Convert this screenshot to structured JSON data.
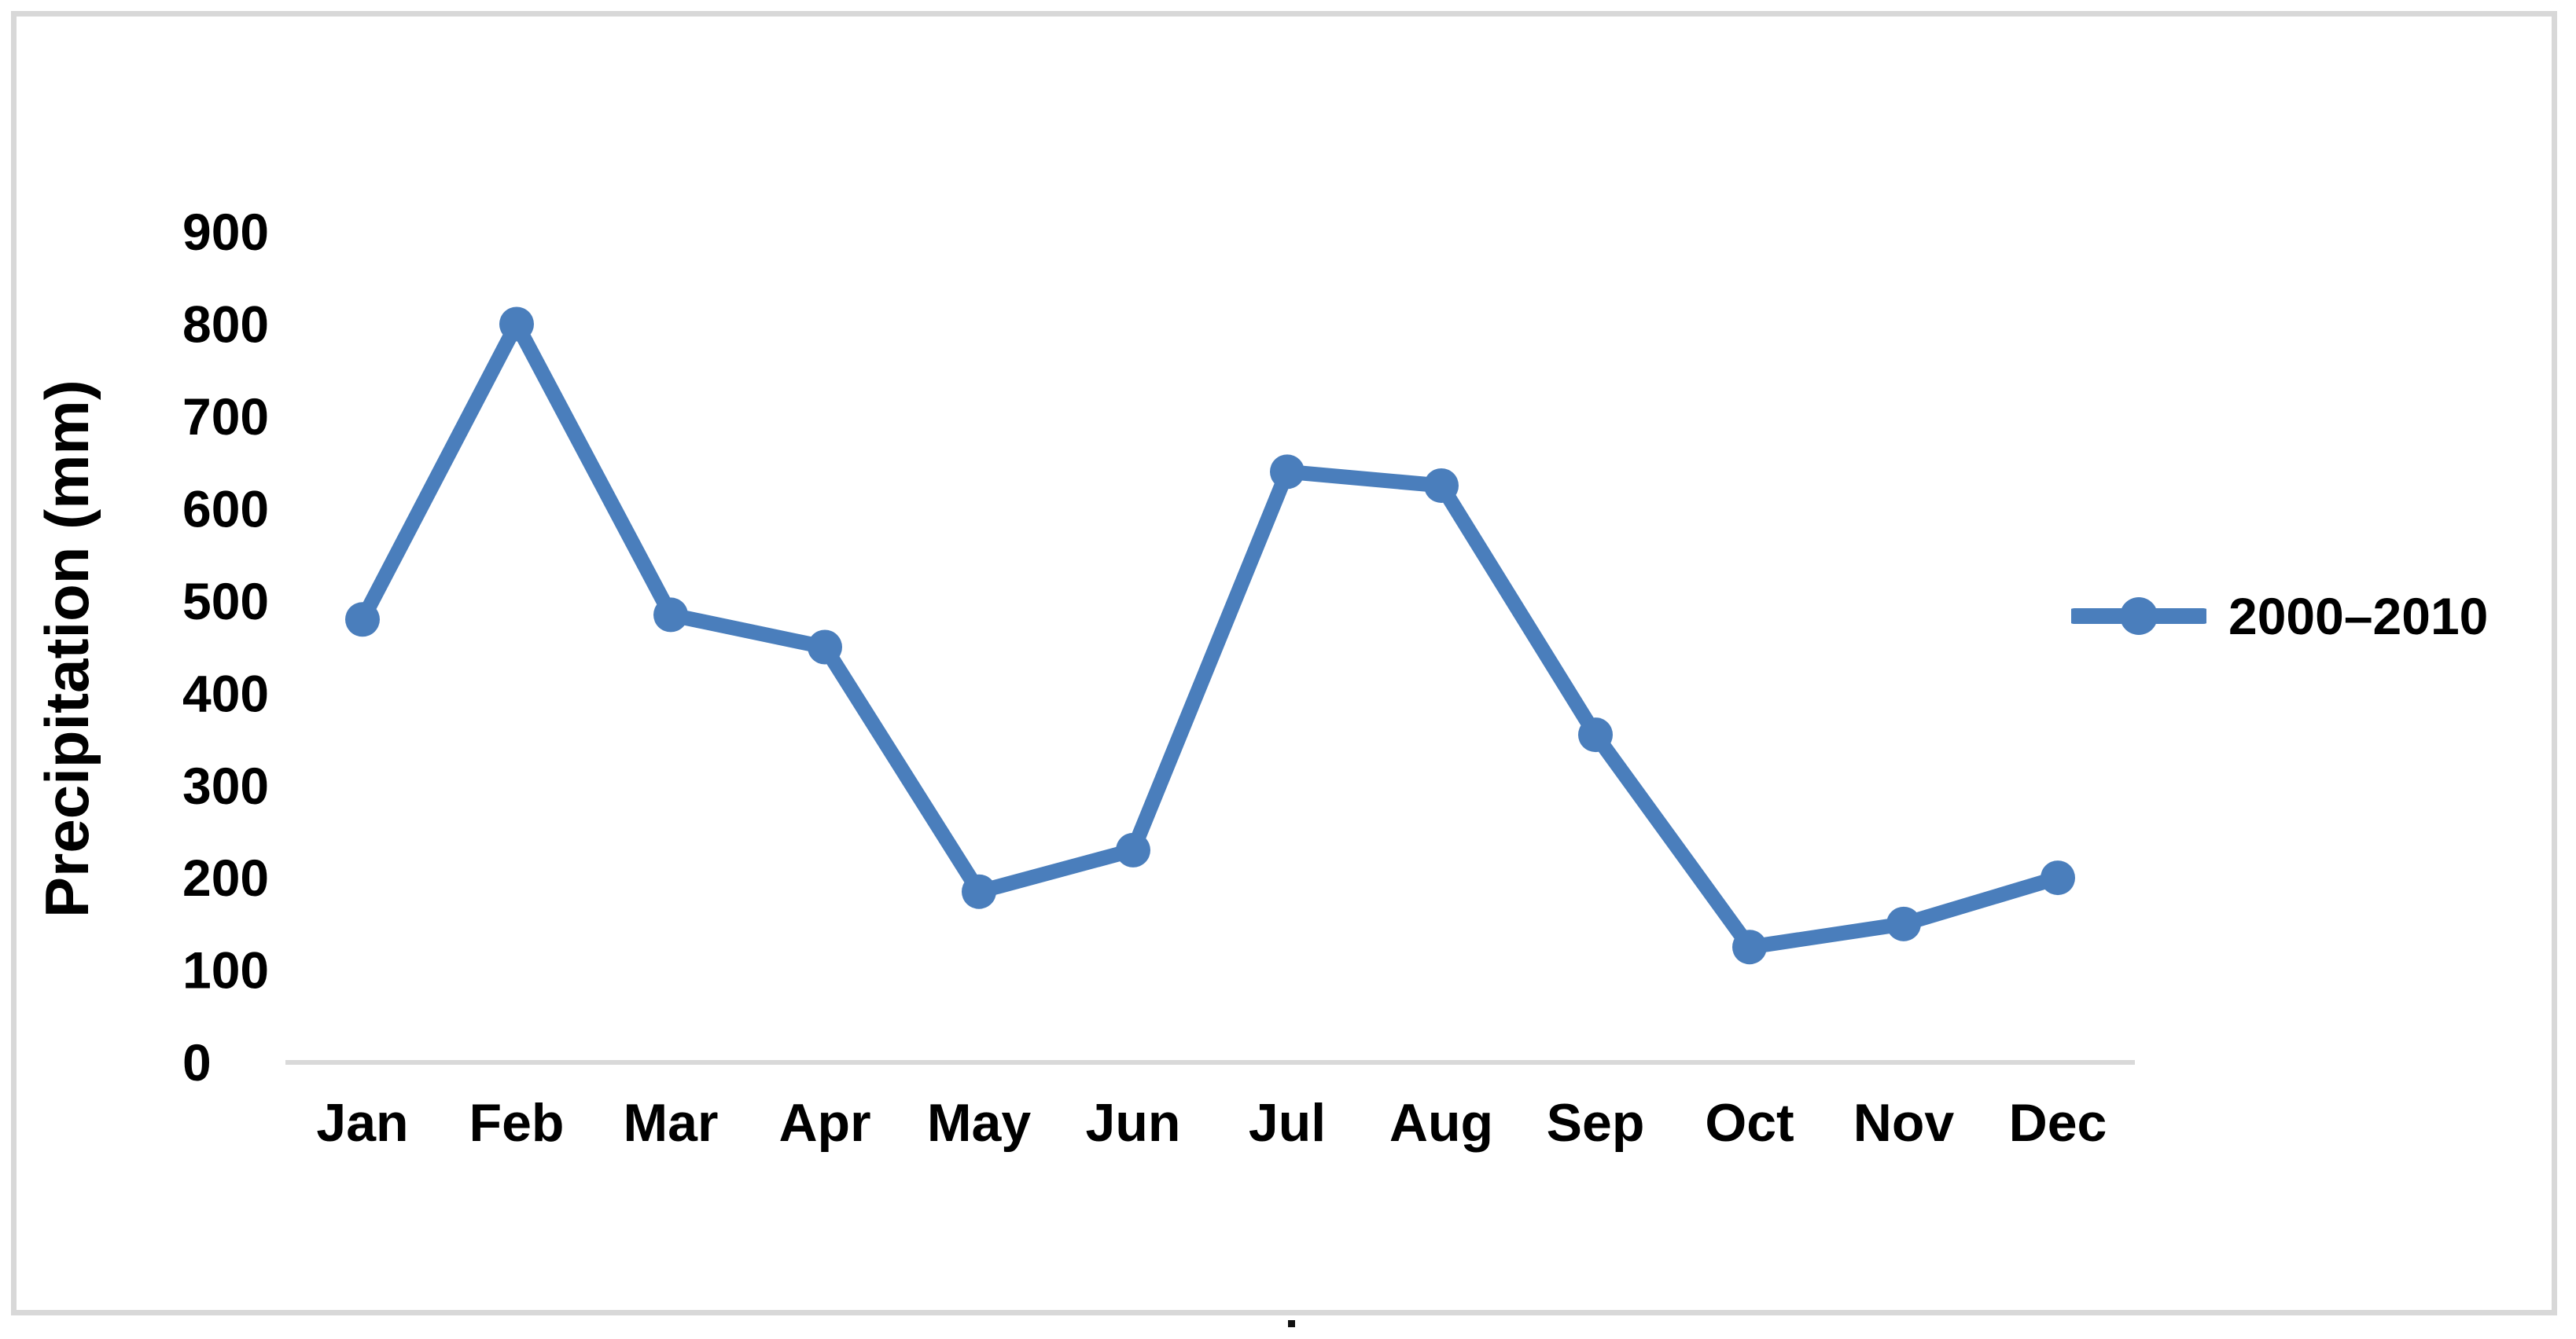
{
  "chart_data": {
    "type": "line",
    "categories": [
      "Jan",
      "Feb",
      "Mar",
      "Apr",
      "May",
      "Jun",
      "Jul",
      "Aug",
      "Sep",
      "Oct",
      "Nov",
      "Dec"
    ],
    "series": [
      {
        "name": "2000–2010",
        "values": [
          480,
          800,
          485,
          450,
          185,
          230,
          640,
          625,
          355,
          125,
          150,
          200
        ]
      }
    ],
    "ylabel": "Precipitation (mm)",
    "xlabel": "",
    "ylim": [
      0,
      900
    ],
    "ytick_step": 100,
    "yticks": [
      0,
      100,
      200,
      300,
      400,
      500,
      600,
      700,
      800,
      900
    ],
    "grid": false,
    "legend_position": "right"
  },
  "colors": {
    "line": "#4A7EBC",
    "marker": "#4A7EBC",
    "axis_line": "#d9d9d9",
    "frame_border": "#d8d8d8",
    "text": "#000000"
  },
  "footer_mark": "."
}
